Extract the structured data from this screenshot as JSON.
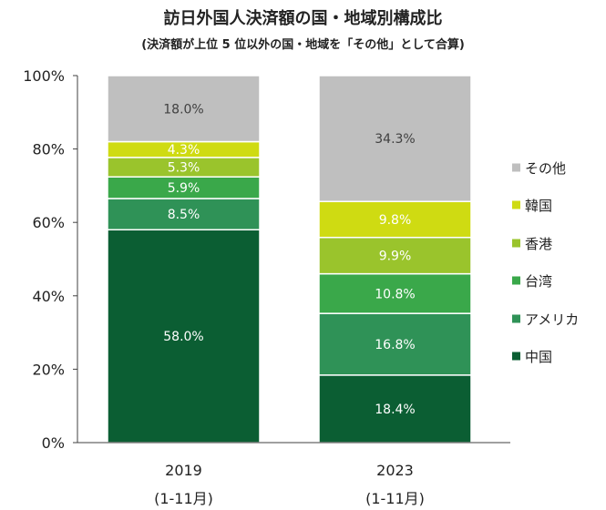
{
  "title": "訪日外国人決済額の国・地域別構成比",
  "subtitle": "(決済額が上位 5 位以外の国・地域を「その他」として合算)",
  "chart_data": {
    "type": "bar",
    "stacked": true,
    "percent_stacked": true,
    "categories": [
      {
        "line1": "2019",
        "line2": "(1-11月)"
      },
      {
        "line1": "2023",
        "line2": "(1-11月)"
      }
    ],
    "y_ticks": [
      "0%",
      "20%",
      "40%",
      "60%",
      "80%",
      "100%"
    ],
    "ylim": [
      0,
      100
    ],
    "grid": false,
    "legend_position": "right",
    "series": [
      {
        "name": "中国",
        "color": "#0b5e33",
        "values": [
          58.0,
          18.4
        ],
        "labels": [
          "58.0%",
          "18.4%"
        ]
      },
      {
        "name": "アメリカ",
        "color": "#2f9257",
        "values": [
          8.5,
          16.8
        ],
        "labels": [
          "8.5%",
          "16.8%"
        ]
      },
      {
        "name": "台湾",
        "color": "#3aa84a",
        "values": [
          5.9,
          10.8
        ],
        "labels": [
          "5.9%",
          "10.8%"
        ]
      },
      {
        "name": "香港",
        "color": "#9ac42c",
        "values": [
          5.3,
          9.9
        ],
        "labels": [
          "5.3%",
          "9.9%"
        ]
      },
      {
        "name": "韓国",
        "color": "#cfdb12",
        "values": [
          4.3,
          9.8
        ],
        "labels": [
          "4.3%",
          "9.8%"
        ]
      },
      {
        "name": "その他",
        "color": "#bfbfbf",
        "values": [
          18.0,
          34.3
        ],
        "labels": [
          "18.0%",
          "34.3%"
        ]
      }
    ]
  }
}
